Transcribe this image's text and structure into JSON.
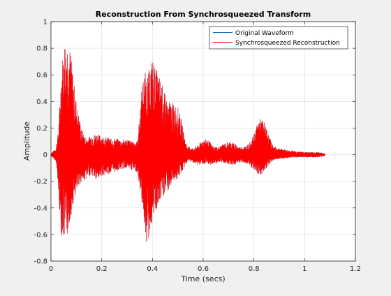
{
  "chart_data": {
    "type": "line",
    "title": "Reconstruction From Synchrosqueezed Transform",
    "xlabel": "Time (secs)",
    "ylabel": "Amplitude",
    "xlim": [
      0,
      1.2
    ],
    "ylim": [
      -0.8,
      1
    ],
    "xticks": [
      0,
      0.2,
      0.4,
      0.6,
      0.8,
      1,
      1.2
    ],
    "xtick_labels": [
      "0",
      "0.2",
      "0.4",
      "0.6",
      "0.8",
      "1",
      "1.2"
    ],
    "yticks": [
      1,
      0.8,
      0.6,
      0.4,
      0.2,
      0,
      -0.2,
      -0.4,
      -0.6,
      -0.8
    ],
    "ytick_labels": [
      "1",
      "0.8",
      "0.6",
      "0.4",
      "0.2",
      "0",
      "-0.2",
      "-0.4",
      "-0.6",
      "-0.8"
    ],
    "grid": true,
    "legend_position": "top-right",
    "series": [
      {
        "name": "Original Waveform",
        "color": "#0072bd",
        "envelope": {
          "t": [
            0.0,
            0.02,
            0.03,
            0.04,
            0.05,
            0.06,
            0.07,
            0.08,
            0.09,
            0.1,
            0.11,
            0.12,
            0.13,
            0.14,
            0.16,
            0.18,
            0.2,
            0.22,
            0.24,
            0.26,
            0.28,
            0.3,
            0.32,
            0.34,
            0.35,
            0.36,
            0.37,
            0.38,
            0.39,
            0.4,
            0.41,
            0.42,
            0.43,
            0.44,
            0.45,
            0.46,
            0.47,
            0.48,
            0.49,
            0.5,
            0.51,
            0.52,
            0.53,
            0.54,
            0.56,
            0.58,
            0.6,
            0.62,
            0.64,
            0.66,
            0.68,
            0.7,
            0.72,
            0.74,
            0.76,
            0.78,
            0.8,
            0.81,
            0.82,
            0.83,
            0.84,
            0.85,
            0.86,
            0.87,
            0.88,
            0.9,
            0.92,
            0.95,
            1.0,
            1.05,
            1.08
          ],
          "upper": [
            0.01,
            0.05,
            0.2,
            0.6,
            0.84,
            0.89,
            0.85,
            0.75,
            0.55,
            0.4,
            0.3,
            0.2,
            0.15,
            0.12,
            0.15,
            0.16,
            0.14,
            0.13,
            0.12,
            0.12,
            0.11,
            0.12,
            0.1,
            0.1,
            0.3,
            0.55,
            0.62,
            0.6,
            0.65,
            0.74,
            0.66,
            0.62,
            0.58,
            0.52,
            0.45,
            0.4,
            0.4,
            0.39,
            0.38,
            0.36,
            0.3,
            0.2,
            0.1,
            0.06,
            0.05,
            0.07,
            0.12,
            0.11,
            0.06,
            0.06,
            0.08,
            0.1,
            0.09,
            0.06,
            0.06,
            0.08,
            0.15,
            0.22,
            0.27,
            0.27,
            0.25,
            0.2,
            0.14,
            0.09,
            0.06,
            0.05,
            0.04,
            0.03,
            0.02,
            0.02,
            0.01
          ],
          "lower": [
            -0.01,
            -0.05,
            -0.3,
            -0.6,
            -0.64,
            -0.66,
            -0.55,
            -0.45,
            -0.35,
            -0.3,
            -0.25,
            -0.2,
            -0.2,
            -0.18,
            -0.15,
            -0.2,
            -0.16,
            -0.15,
            -0.14,
            -0.12,
            -0.11,
            -0.1,
            -0.12,
            -0.13,
            -0.25,
            -0.38,
            -0.55,
            -0.72,
            -0.58,
            -0.5,
            -0.45,
            -0.42,
            -0.36,
            -0.33,
            -0.3,
            -0.28,
            -0.25,
            -0.2,
            -0.18,
            -0.2,
            -0.15,
            -0.12,
            -0.08,
            -0.05,
            -0.06,
            -0.08,
            -0.07,
            -0.08,
            -0.07,
            -0.06,
            -0.06,
            -0.07,
            -0.08,
            -0.06,
            -0.06,
            -0.08,
            -0.12,
            -0.14,
            -0.16,
            -0.15,
            -0.13,
            -0.1,
            -0.07,
            -0.05,
            -0.04,
            -0.03,
            -0.03,
            -0.02,
            -0.02,
            -0.02,
            -0.01
          ]
        }
      },
      {
        "name": "Synchrosqueezed Reconstruction",
        "color": "#ff0000",
        "envelope_same_as": "Original Waveform"
      }
    ]
  }
}
